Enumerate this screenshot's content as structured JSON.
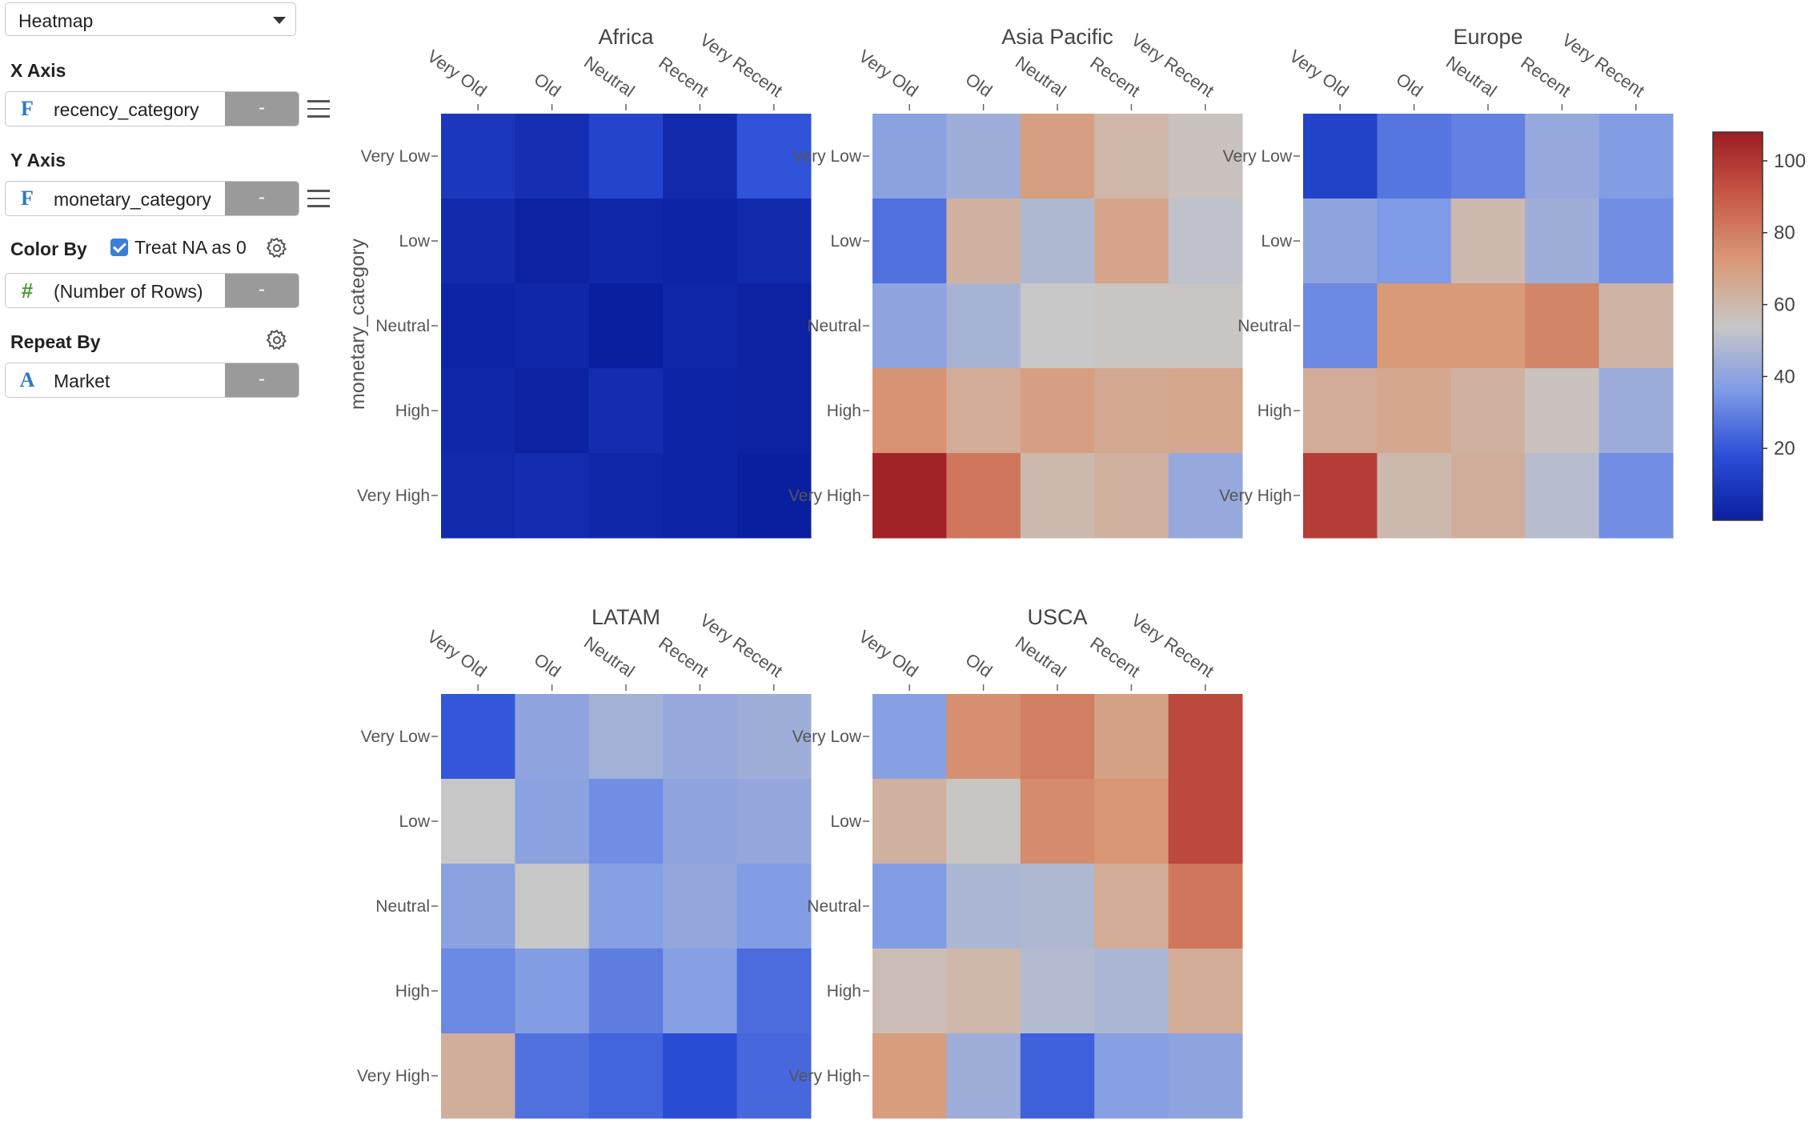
{
  "panel": {
    "chart_type": "Heatmap",
    "x_axis": {
      "label": "X Axis",
      "field": "recency_category",
      "type_icon": "F",
      "remove_label": "-"
    },
    "y_axis": {
      "label": "Y Axis",
      "field": "monetary_category",
      "type_icon": "F",
      "remove_label": "-"
    },
    "color_by": {
      "label": "Color By",
      "treat_na_label": "Treat NA as 0",
      "treat_na_checked": true,
      "field": "(Number of Rows)",
      "type_icon": "#",
      "remove_label": "-"
    },
    "repeat_by": {
      "label": "Repeat By",
      "field": "Market",
      "type_icon": "A",
      "remove_label": "-"
    }
  },
  "chart_data": {
    "type": "heatmap",
    "xlabel": "",
    "ylabel": "monetary_category",
    "x_categories": [
      "Very Old",
      "Old",
      "Neutral",
      "Recent",
      "Very Recent"
    ],
    "y_categories": [
      "Very Low",
      "Low",
      "Neutral",
      "High",
      "Very High"
    ],
    "color_scale": {
      "min": 0,
      "max": 108,
      "colors": [
        "#0a1fa0",
        "#2b4fd8",
        "#7f9ae6",
        "#c7c7c7",
        "#d99a78",
        "#c85a46",
        "#9c1c24"
      ],
      "ticks": [
        20,
        40,
        60,
        80,
        100
      ]
    },
    "panels": [
      {
        "title": "Africa",
        "values": [
          [
            9,
            6,
            14,
            4,
            19
          ],
          [
            4,
            1,
            3,
            2,
            4
          ],
          [
            2,
            3,
            0,
            3,
            1
          ],
          [
            3,
            1,
            5,
            2,
            1
          ],
          [
            4,
            5,
            3,
            2,
            0
          ]
        ]
      },
      {
        "title": "Asia Pacific",
        "values": [
          [
            39,
            44,
            70,
            61,
            56
          ],
          [
            26,
            63,
            48,
            68,
            52
          ],
          [
            40,
            46,
            54,
            55,
            55
          ],
          [
            74,
            65,
            70,
            66,
            67
          ],
          [
            106,
            82,
            60,
            63,
            42
          ]
        ]
      },
      {
        "title": "Europe",
        "values": [
          [
            13,
            27,
            30,
            42,
            37
          ],
          [
            40,
            36,
            60,
            44,
            33
          ],
          [
            32,
            72,
            72,
            78,
            62
          ],
          [
            65,
            67,
            63,
            56,
            43
          ],
          [
            98,
            60,
            64,
            50,
            33
          ]
        ]
      },
      {
        "title": "LATAM",
        "values": [
          [
            20,
            40,
            45,
            42,
            44
          ],
          [
            54,
            39,
            33,
            40,
            41
          ],
          [
            39,
            54,
            38,
            41,
            37
          ],
          [
            32,
            37,
            29,
            38,
            25
          ],
          [
            64,
            26,
            23,
            17,
            24
          ]
        ]
      },
      {
        "title": "USCA",
        "values": [
          [
            38,
            75,
            80,
            69,
            95
          ],
          [
            63,
            55,
            76,
            73,
            95
          ],
          [
            37,
            47,
            48,
            65,
            82
          ],
          [
            58,
            61,
            49,
            47,
            65
          ],
          [
            71,
            44,
            22,
            38,
            40
          ]
        ]
      }
    ]
  }
}
